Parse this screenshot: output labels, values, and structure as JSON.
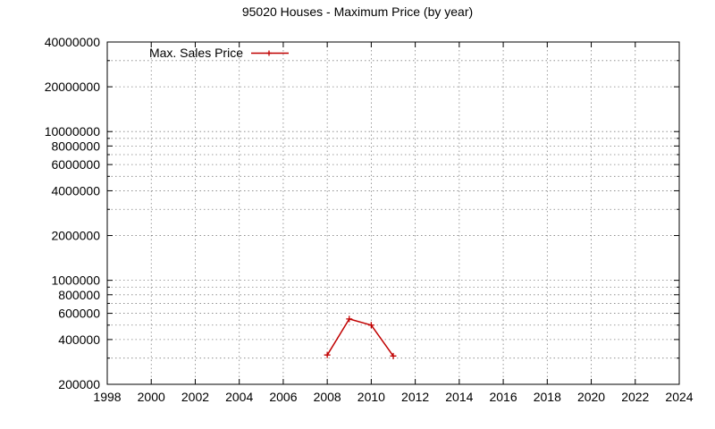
{
  "chart_data": {
    "type": "line",
    "title": "95020 Houses - Maximum Price (by year)",
    "xlabel": "",
    "ylabel": "",
    "xlim": [
      1998,
      2024
    ],
    "ylim": [
      200000,
      40000000
    ],
    "yscale": "log",
    "x_ticks": [
      1998,
      2000,
      2002,
      2004,
      2006,
      2008,
      2010,
      2012,
      2014,
      2016,
      2018,
      2020,
      2022,
      2024
    ],
    "x_tick_labels": [
      "1998",
      "2000",
      "2002",
      "2004",
      "2006",
      "2008",
      "2010",
      "2012",
      "2014",
      "2016",
      "2018",
      "2020",
      "2022",
      "2024"
    ],
    "y_ticks": [
      200000,
      400000,
      600000,
      800000,
      1000000,
      2000000,
      4000000,
      6000000,
      8000000,
      10000000,
      20000000,
      40000000
    ],
    "y_tick_labels": [
      "200000",
      "400000",
      "600000",
      "800000",
      "1000000",
      "2000000",
      "4000000",
      "6000000",
      "8000000",
      "10000000",
      "20000000",
      "40000000"
    ],
    "grid": true,
    "legend_position": "top-left",
    "series": [
      {
        "name": "Max. Sales Price",
        "color": "#c00000",
        "marker": "plus",
        "x": [
          2008,
          2009,
          2010,
          2011
        ],
        "y": [
          315000,
          550000,
          500000,
          310000
        ]
      }
    ]
  }
}
